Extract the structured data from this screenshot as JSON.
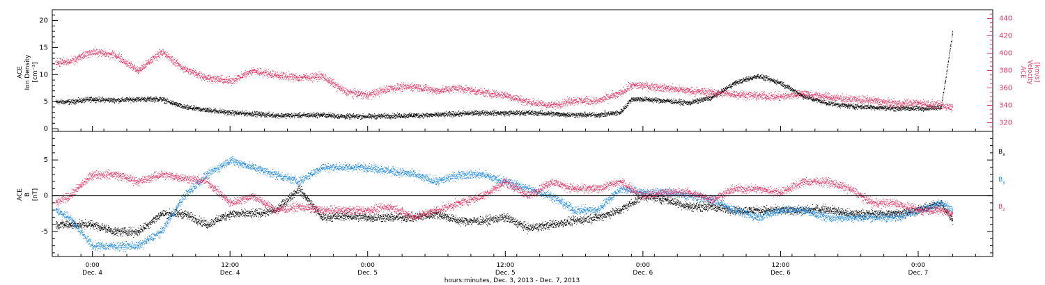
{
  "chart_data": [
    {
      "type": "scatter",
      "panel": "top",
      "ylabel_left": [
        "ACE",
        "Ion Density",
        "[cm⁻³]"
      ],
      "ylabel_right": [
        "ACE",
        "Velocity",
        "[km/s]"
      ],
      "ylim_left": [
        -0.5,
        22
      ],
      "yticks_left": [
        0,
        5,
        10,
        15,
        20
      ],
      "ylim_right": [
        310,
        450
      ],
      "yticks_right": [
        320,
        340,
        360,
        380,
        400,
        420,
        440
      ],
      "series": [
        {
          "axis": "left",
          "color": "#000000",
          "x": [
            -3.2,
            -2,
            0,
            2,
            4,
            6,
            8,
            10,
            12,
            14,
            16,
            18,
            20,
            22,
            24,
            26,
            28,
            30,
            32,
            34,
            36,
            38,
            40,
            42,
            44,
            46,
            47,
            48,
            50,
            52,
            54,
            56,
            58,
            60,
            62,
            64,
            66,
            68,
            70,
            72,
            74,
            75
          ],
          "values": [
            5,
            5,
            5.5,
            5.3,
            5.5,
            5.5,
            4,
            3.5,
            3,
            2.8,
            2.5,
            2.5,
            2.6,
            2.3,
            2.3,
            2.4,
            2.5,
            2.6,
            2.8,
            3,
            2.9,
            3,
            2.8,
            2.6,
            2.6,
            3,
            5.5,
            5.5,
            5.2,
            4.8,
            5.8,
            8.5,
            9.8,
            8.5,
            6,
            4.8,
            4.2,
            4,
            3.8,
            3.8,
            4,
            18
          ]
        },
        {
          "axis": "right",
          "color": "#e03462",
          "x": [
            -3.2,
            -2,
            0,
            2,
            4,
            6,
            8,
            10,
            12,
            14,
            16,
            18,
            20,
            22,
            24,
            26,
            28,
            30,
            32,
            34,
            36,
            38,
            40,
            42,
            44,
            46,
            47,
            48,
            50,
            52,
            54,
            56,
            58,
            60,
            62,
            64,
            66,
            68,
            70,
            72,
            74,
            75
          ],
          "values": [
            390,
            390,
            402,
            398,
            380,
            402,
            382,
            372,
            368,
            380,
            375,
            372,
            374,
            356,
            352,
            360,
            362,
            357,
            360,
            355,
            352,
            344,
            340,
            346,
            345,
            354,
            363,
            363,
            360,
            357,
            355,
            353,
            351,
            350,
            354,
            350,
            347,
            346,
            342,
            343,
            340,
            338
          ]
        }
      ]
    },
    {
      "type": "scatter",
      "panel": "bottom",
      "ylabel": [
        "ACE",
        "B",
        "[nT]"
      ],
      "ylim": [
        -8.5,
        9
      ],
      "yticks": [
        -5,
        0,
        5
      ],
      "hline": 0,
      "series": [
        {
          "name": "Bx",
          "color": "#000000",
          "x": [
            -3.2,
            -2,
            0,
            2,
            4,
            6,
            8,
            10,
            12,
            14,
            16,
            18,
            20,
            22,
            24,
            26,
            28,
            30,
            32,
            34,
            36,
            38,
            40,
            42,
            44,
            46,
            48,
            50,
            52,
            54,
            56,
            58,
            60,
            62,
            64,
            66,
            68,
            70,
            72,
            74,
            75
          ],
          "values": [
            -4,
            -4,
            -4,
            -5,
            -5,
            -2.5,
            -2.5,
            -4,
            -2.5,
            -2.5,
            -2,
            1,
            -3,
            -2.8,
            -3,
            -3,
            -3,
            -2.5,
            -3.5,
            -3.5,
            -3,
            -4.5,
            -4,
            -3.5,
            -3,
            -2,
            0,
            -0.5,
            -1.5,
            -1.5,
            -2,
            -2,
            -2,
            -2,
            -1.8,
            -2.5,
            -2.5,
            -2.5,
            -2,
            -1,
            -3.5
          ]
        },
        {
          "name": "By",
          "color": "#1a86de",
          "x": [
            -3.2,
            -2,
            0,
            2,
            4,
            6,
            8,
            10,
            12,
            14,
            16,
            18,
            20,
            22,
            24,
            26,
            28,
            30,
            32,
            34,
            36,
            38,
            40,
            42,
            44,
            46,
            48,
            50,
            52,
            54,
            56,
            58,
            60,
            62,
            64,
            66,
            68,
            70,
            72,
            74,
            75
          ],
          "values": [
            -2,
            -3,
            -7,
            -7,
            -7,
            -5,
            0,
            3,
            5,
            4,
            3,
            2,
            4,
            4,
            4,
            3.5,
            3,
            2,
            3,
            3,
            2,
            1,
            0,
            -2,
            -2,
            1,
            0.5,
            0.5,
            0,
            -0.5,
            -2,
            -3,
            -2,
            -2,
            -3,
            -3,
            -3,
            -3,
            -2,
            -1,
            -2
          ]
        },
        {
          "name": "Bz",
          "color": "#e03462",
          "x": [
            -3.2,
            -2,
            0,
            2,
            4,
            6,
            8,
            10,
            12,
            14,
            16,
            18,
            20,
            22,
            24,
            26,
            28,
            30,
            32,
            34,
            36,
            38,
            40,
            42,
            44,
            46,
            48,
            50,
            52,
            54,
            56,
            58,
            60,
            62,
            64,
            66,
            68,
            70,
            72,
            74,
            75
          ],
          "values": [
            -1,
            0,
            3,
            3,
            2,
            3,
            2.5,
            2,
            -1,
            0,
            -2,
            -1.5,
            -2,
            -2,
            -2,
            -1.5,
            -3,
            -2,
            -1,
            0,
            2,
            0,
            2,
            1,
            1,
            2,
            0,
            0.5,
            0.5,
            -0.5,
            1,
            1,
            0.5,
            2,
            2,
            1,
            -1,
            -1,
            -2,
            -2,
            -2.5
          ]
        }
      ],
      "legend_position": "right"
    }
  ],
  "x_axis": {
    "range_hours": [
      -3.5,
      78.5
    ],
    "ticks": [
      {
        "x": 0,
        "time": "0:00",
        "day": "Dec. 4"
      },
      {
        "x": 12,
        "time": "12:00",
        "day": "Dec. 4"
      },
      {
        "x": 24,
        "time": "0:00",
        "day": "Dec. 5"
      },
      {
        "x": 36,
        "time": "12:00",
        "day": "Dec. 5"
      },
      {
        "x": 48,
        "time": "0:00",
        "day": "Dec. 6"
      },
      {
        "x": 60,
        "time": "12:00",
        "day": "Dec. 6"
      },
      {
        "x": 72,
        "time": "0:00",
        "day": "Dec. 7"
      }
    ],
    "title": "hours:minutes, Dec.  3, 2013 - Dec.  7, 2013"
  },
  "legend": [
    {
      "label": "B",
      "sub": "x",
      "color": "#000000"
    },
    {
      "label": "B",
      "sub": "y",
      "color": "#1a86de"
    },
    {
      "label": "B",
      "sub": "z",
      "color": "#e03462"
    }
  ]
}
